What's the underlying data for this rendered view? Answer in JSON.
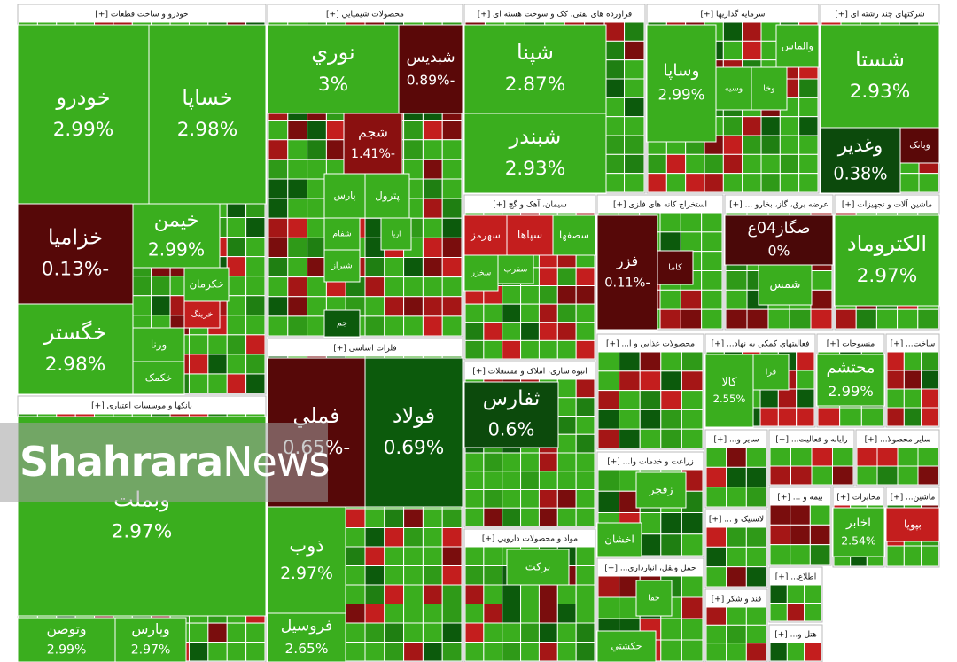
{
  "chart_data": {
    "type": "treemap",
    "watermark": {
      "strong": "Shahrara",
      "light": "News"
    },
    "sectors": [
      {
        "title": "خودرو و ساخت قطعات [+]",
        "tiles": [
          {
            "name": "خودرو",
            "change": {
              "value": 2.99,
              "label": "2.99%"
            },
            "color": "#3aae1e"
          },
          {
            "name": "خساپا",
            "change": {
              "value": 2.98,
              "label": "2.98%"
            },
            "color": "#3aae1e"
          },
          {
            "name": "خزاميا",
            "change": {
              "value": -0.13,
              "label": "-0.13%"
            },
            "color": "#560808"
          },
          {
            "name": "خگستر",
            "change": {
              "value": 2.98,
              "label": "2.98%"
            },
            "color": "#3aae1e"
          },
          {
            "name": "خيمن",
            "change": {
              "value": 2.99,
              "label": "2.99%"
            },
            "color": "#3aae1e"
          },
          {
            "name": "خكرمان",
            "color": "#3aae1e"
          },
          {
            "name": "خرينگ",
            "color": "#c41e1e"
          },
          {
            "name": "ورنا",
            "color": "#3aae1e"
          },
          {
            "name": "خكمک",
            "color": "#3aae1e"
          }
        ]
      },
      {
        "title": "بانکها و موسسات اعتباری [+]",
        "tiles": [
          {
            "name": "وبملت",
            "change": {
              "value": 2.97,
              "label": "2.97%"
            },
            "color": "#3aae1e"
          },
          {
            "name": "وتوصن",
            "change": {
              "value": 2.99,
              "label": "2.99%"
            },
            "color": "#3aae1e"
          },
          {
            "name": "وپارس",
            "change": {
              "value": 2.97,
              "label": "2.97%"
            },
            "color": "#3aae1e"
          }
        ]
      },
      {
        "title": "محصولات شيميايي [+]",
        "tiles": [
          {
            "name": "نوري",
            "change": {
              "value": 3,
              "label": "3%"
            },
            "color": "#3aae1e"
          },
          {
            "name": "شبديس",
            "change": {
              "value": -0.89,
              "label": "-0.89%"
            },
            "color": "#5a0808"
          },
          {
            "name": "شجم",
            "change": {
              "value": -1.41,
              "label": "-1.41%"
            },
            "color": "#8a1010"
          },
          {
            "name": "پترول",
            "color": "#3aae1e"
          },
          {
            "name": "پارس",
            "color": "#3aae1e"
          },
          {
            "name": "شفام",
            "color": "#3aae1e"
          },
          {
            "name": "آريا",
            "color": "#3aae1e"
          },
          {
            "name": "شيراز",
            "color": "#3aae1e"
          },
          {
            "name": "جم",
            "color": "#0c5a0c"
          }
        ]
      },
      {
        "title": "فلزات اساسی [+]",
        "tiles": [
          {
            "name": "فملي",
            "change": {
              "value": -0.65,
              "label": "-0.65%"
            },
            "color": "#560808"
          },
          {
            "name": "فولاد",
            "change": {
              "value": 0.69,
              "label": "0.69%"
            },
            "color": "#0c5a0c"
          },
          {
            "name": "ذوب",
            "change": {
              "value": 2.97,
              "label": "2.97%"
            },
            "color": "#3aae1e"
          },
          {
            "name": "فروسيل",
            "change": {
              "value": 2.65,
              "label": "2.65%"
            },
            "color": "#3aae1e"
          }
        ]
      },
      {
        "title": "فراورده های نفتی، کک و سوخت هسته ای [+]",
        "tiles": [
          {
            "name": "شپنا",
            "change": {
              "value": 2.87,
              "label": "2.87%"
            },
            "color": "#3aae1e"
          },
          {
            "name": "شبندر",
            "change": {
              "value": 2.93,
              "label": "2.93%"
            },
            "color": "#3aae1e"
          }
        ]
      },
      {
        "title": "سرمايه گذاريها [+]",
        "tiles": [
          {
            "name": "وساپا",
            "change": {
              "value": 2.99,
              "label": "2.99%"
            },
            "color": "#3aae1e"
          },
          {
            "name": "والماس",
            "color": "#3aae1e"
          },
          {
            "name": "وسيه",
            "color": "#3aae1e"
          },
          {
            "name": "وخا",
            "color": "#3aae1e"
          }
        ]
      },
      {
        "title": "شرکتهای چند رشته ای [+]",
        "tiles": [
          {
            "name": "شستا",
            "change": {
              "value": 2.93,
              "label": "2.93%"
            },
            "color": "#3aae1e"
          },
          {
            "name": "وغدير",
            "change": {
              "value": 0.38,
              "label": "0.38%"
            },
            "color": "#0c4a0c"
          },
          {
            "name": "وبانک",
            "color": "#5a0808"
          }
        ]
      },
      {
        "title": "سيمان، آهک و گچ [+]",
        "tiles": [
          {
            "name": "سهرمز",
            "color": "#c41e1e"
          },
          {
            "name": "سپاها",
            "color": "#c41e1e"
          },
          {
            "name": "سصفها",
            "color": "#3aae1e"
          },
          {
            "name": "سخزر",
            "color": "#3aae1e"
          },
          {
            "name": "سفرب",
            "color": "#3aae1e"
          }
        ]
      },
      {
        "title": "استخراج کانه های فلزی [+]",
        "tiles": [
          {
            "name": "فزر",
            "change": {
              "value": -0.11,
              "label": "-0.11%"
            },
            "color": "#560808"
          },
          {
            "name": "كاما",
            "color": "#560808"
          }
        ]
      },
      {
        "title": "عرضه برق، گاز، بخارو ... [+]",
        "tiles": [
          {
            "name": "صگاز04ع",
            "change": {
              "value": 0,
              "label": "0%"
            },
            "color": "#4a0808"
          },
          {
            "name": "شمس",
            "color": "#3aae1e"
          }
        ]
      },
      {
        "title": "ماشين آلات و تجهيزات [+]",
        "tiles": [
          {
            "name": "الكتروماد",
            "change": {
              "value": 2.97,
              "label": "2.97%"
            },
            "color": "#3aae1e"
          }
        ]
      },
      {
        "title": "انبوه سازی، املاک و مستغلات [+]",
        "tiles": [
          {
            "name": "ثفارس",
            "change": {
              "value": 0.6,
              "label": "0.6%"
            },
            "color": "#0c4a0c"
          }
        ]
      },
      {
        "title": "مواد و محصولات دارويي [+]",
        "tiles": [
          {
            "name": "بركت",
            "color": "#3aae1e"
          }
        ]
      },
      {
        "title": "محصولات غذايي و ا... [+]",
        "tiles": []
      },
      {
        "title": "زراعت و خدمات وا... [+]",
        "tiles": [
          {
            "name": "زفجر",
            "color": "#3aae1e"
          },
          {
            "name": "اخشان",
            "color": "#3aae1e"
          }
        ]
      },
      {
        "title": "حمل ونقل، انبارداري... [+]",
        "tiles": [
          {
            "name": "حفا",
            "color": "#3aae1e"
          },
          {
            "name": "حكشتي",
            "color": "#3aae1e"
          }
        ]
      },
      {
        "title": "فعاليتهاي كمكي به نهاد... [+]",
        "tiles": [
          {
            "name": "كالا",
            "change": {
              "value": 2.55,
              "label": "2.55%"
            },
            "color": "#3aae1e"
          },
          {
            "name": "فرا",
            "color": "#3aae1e"
          }
        ]
      },
      {
        "title": "منسوجات [+]",
        "tiles": [
          {
            "name": "محتشم",
            "change": {
              "value": 2.99,
              "label": "2.99%"
            },
            "color": "#3aae1e"
          }
        ]
      },
      {
        "title": "ساخت... [+]",
        "tiles": []
      },
      {
        "title": "سایر و... [+]",
        "tiles": []
      },
      {
        "title": "رایانه و فعالیت... [+]",
        "tiles": []
      },
      {
        "title": "سایر محصولا... [+]",
        "tiles": []
      },
      {
        "title": "بیمه و ... [+]",
        "tiles": []
      },
      {
        "title": "مخابرات [+]",
        "tiles": [
          {
            "name": "اخابر",
            "change": {
              "value": 2.54,
              "label": "2.54%"
            },
            "color": "#3aae1e"
          }
        ]
      },
      {
        "title": "ماشين... [+]",
        "tiles": [
          {
            "name": "بپويا",
            "color": "#c41e1e"
          }
        ]
      },
      {
        "title": "لاستيک و ... [+]",
        "tiles": []
      },
      {
        "title": "قند و شكر [+]",
        "tiles": []
      },
      {
        "title": "اطلاع... [+]",
        "tiles": []
      },
      {
        "title": "هتل و... [+]",
        "tiles": []
      }
    ]
  }
}
